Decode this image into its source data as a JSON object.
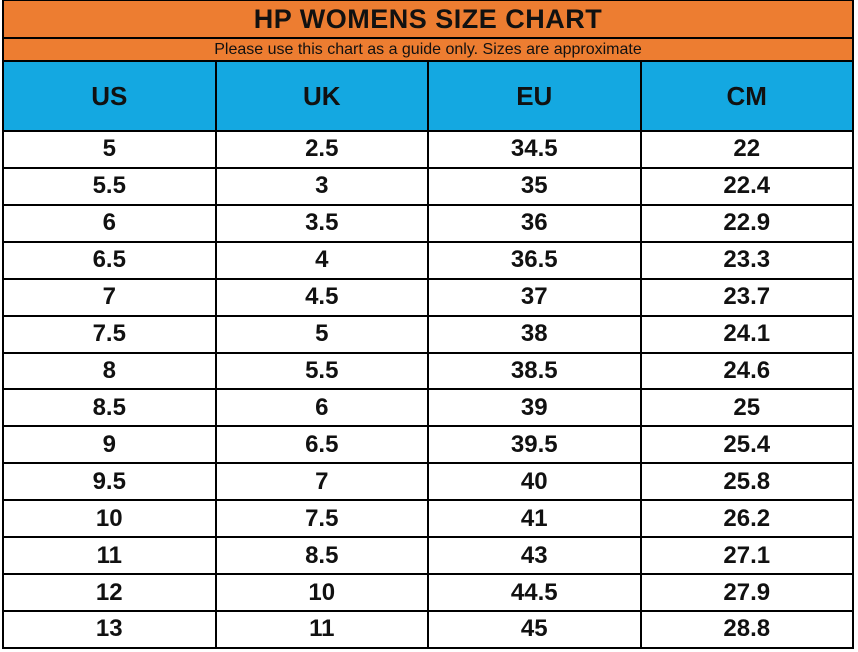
{
  "title": "HP WOMENS SIZE CHART",
  "subtitle": "Please use this chart as a guide only. Sizes are approximate",
  "colors": {
    "header_orange": "#ED7D31",
    "header_blue": "#14A8E1",
    "grid_border": "#000000",
    "row_background": "#FFFFFF",
    "text": "#111111"
  },
  "chart_data": {
    "type": "table",
    "title": "HP WOMENS SIZE CHART",
    "subtitle": "Please use this chart as a guide only. Sizes are approximate",
    "columns": [
      "US",
      "UK",
      "EU",
      "CM"
    ],
    "rows": [
      [
        "5",
        "2.5",
        "34.5",
        "22"
      ],
      [
        "5.5",
        "3",
        "35",
        "22.4"
      ],
      [
        "6",
        "3.5",
        "36",
        "22.9"
      ],
      [
        "6.5",
        "4",
        "36.5",
        "23.3"
      ],
      [
        "7",
        "4.5",
        "37",
        "23.7"
      ],
      [
        "7.5",
        "5",
        "38",
        "24.1"
      ],
      [
        "8",
        "5.5",
        "38.5",
        "24.6"
      ],
      [
        "8.5",
        "6",
        "39",
        "25"
      ],
      [
        "9",
        "6.5",
        "39.5",
        "25.4"
      ],
      [
        "9.5",
        "7",
        "40",
        "25.8"
      ],
      [
        "10",
        "7.5",
        "41",
        "26.2"
      ],
      [
        "11",
        "8.5",
        "43",
        "27.1"
      ],
      [
        "12",
        "10",
        "44.5",
        "27.9"
      ],
      [
        "13",
        "11",
        "45",
        "28.8"
      ]
    ],
    "layout": {
      "grid": "on",
      "columns_equal_width": true,
      "header_style": "colored-bands"
    }
  }
}
